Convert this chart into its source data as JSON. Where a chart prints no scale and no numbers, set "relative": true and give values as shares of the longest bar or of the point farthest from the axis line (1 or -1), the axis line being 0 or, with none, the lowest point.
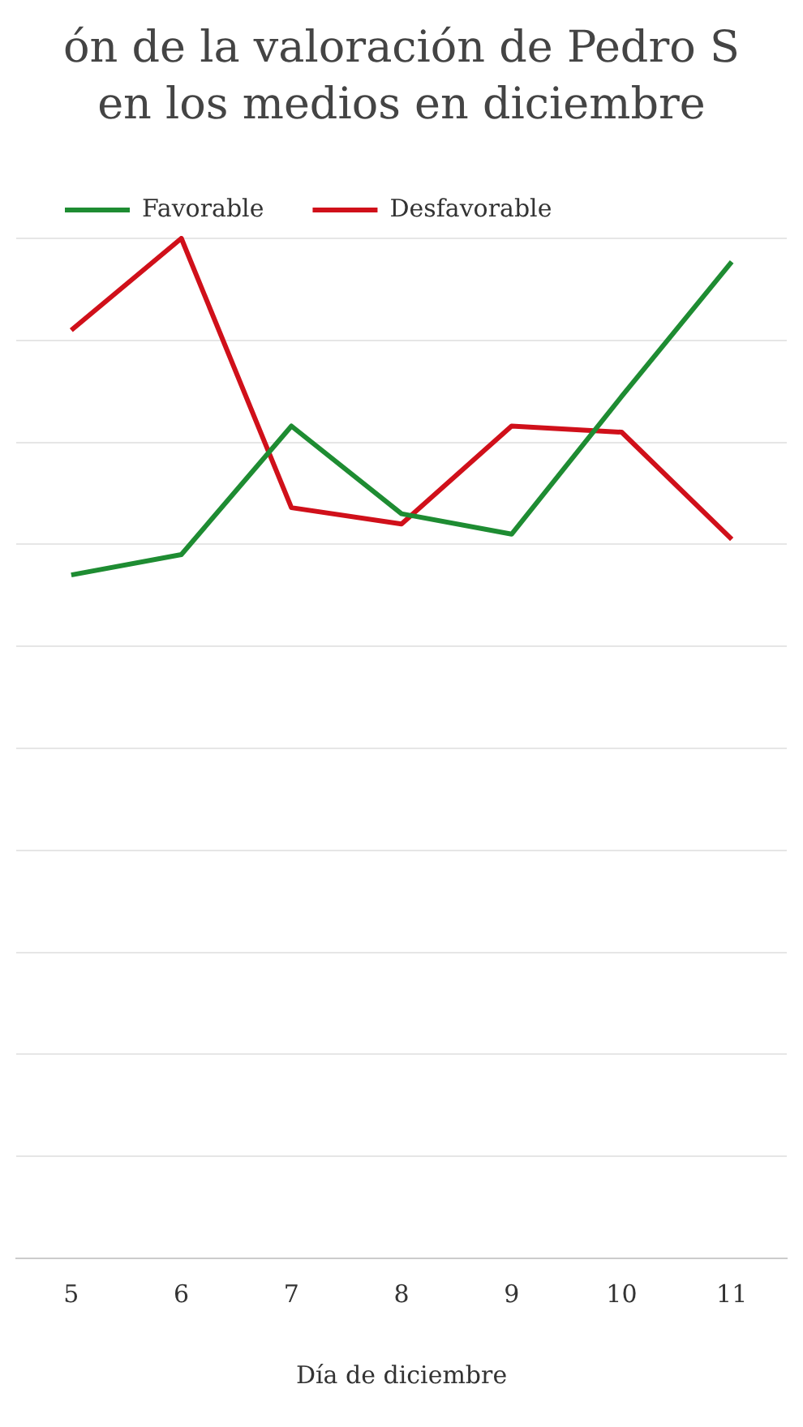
{
  "chart_data": {
    "type": "line",
    "title": "ón de la valoración de Pedro S en los medios en diciembre",
    "xlabel": "Día de diciembre",
    "categories": [
      "5",
      "6",
      "7",
      "8",
      "9",
      "10",
      "11"
    ],
    "relative": true,
    "grid": "y",
    "legend": "top left",
    "marker": "none",
    "line_style": "solid",
    "series": [
      {
        "name": "Favorable",
        "color": "#1e8c32",
        "values": [
          0.67,
          0.69,
          0.816,
          0.73,
          0.71,
          0.845,
          0.977
        ]
      },
      {
        "name": "Desfavorable",
        "color": "#d0101a",
        "values": [
          0.91,
          1,
          0.736,
          0.72,
          0.816,
          0.81,
          0.705
        ]
      }
    ]
  }
}
